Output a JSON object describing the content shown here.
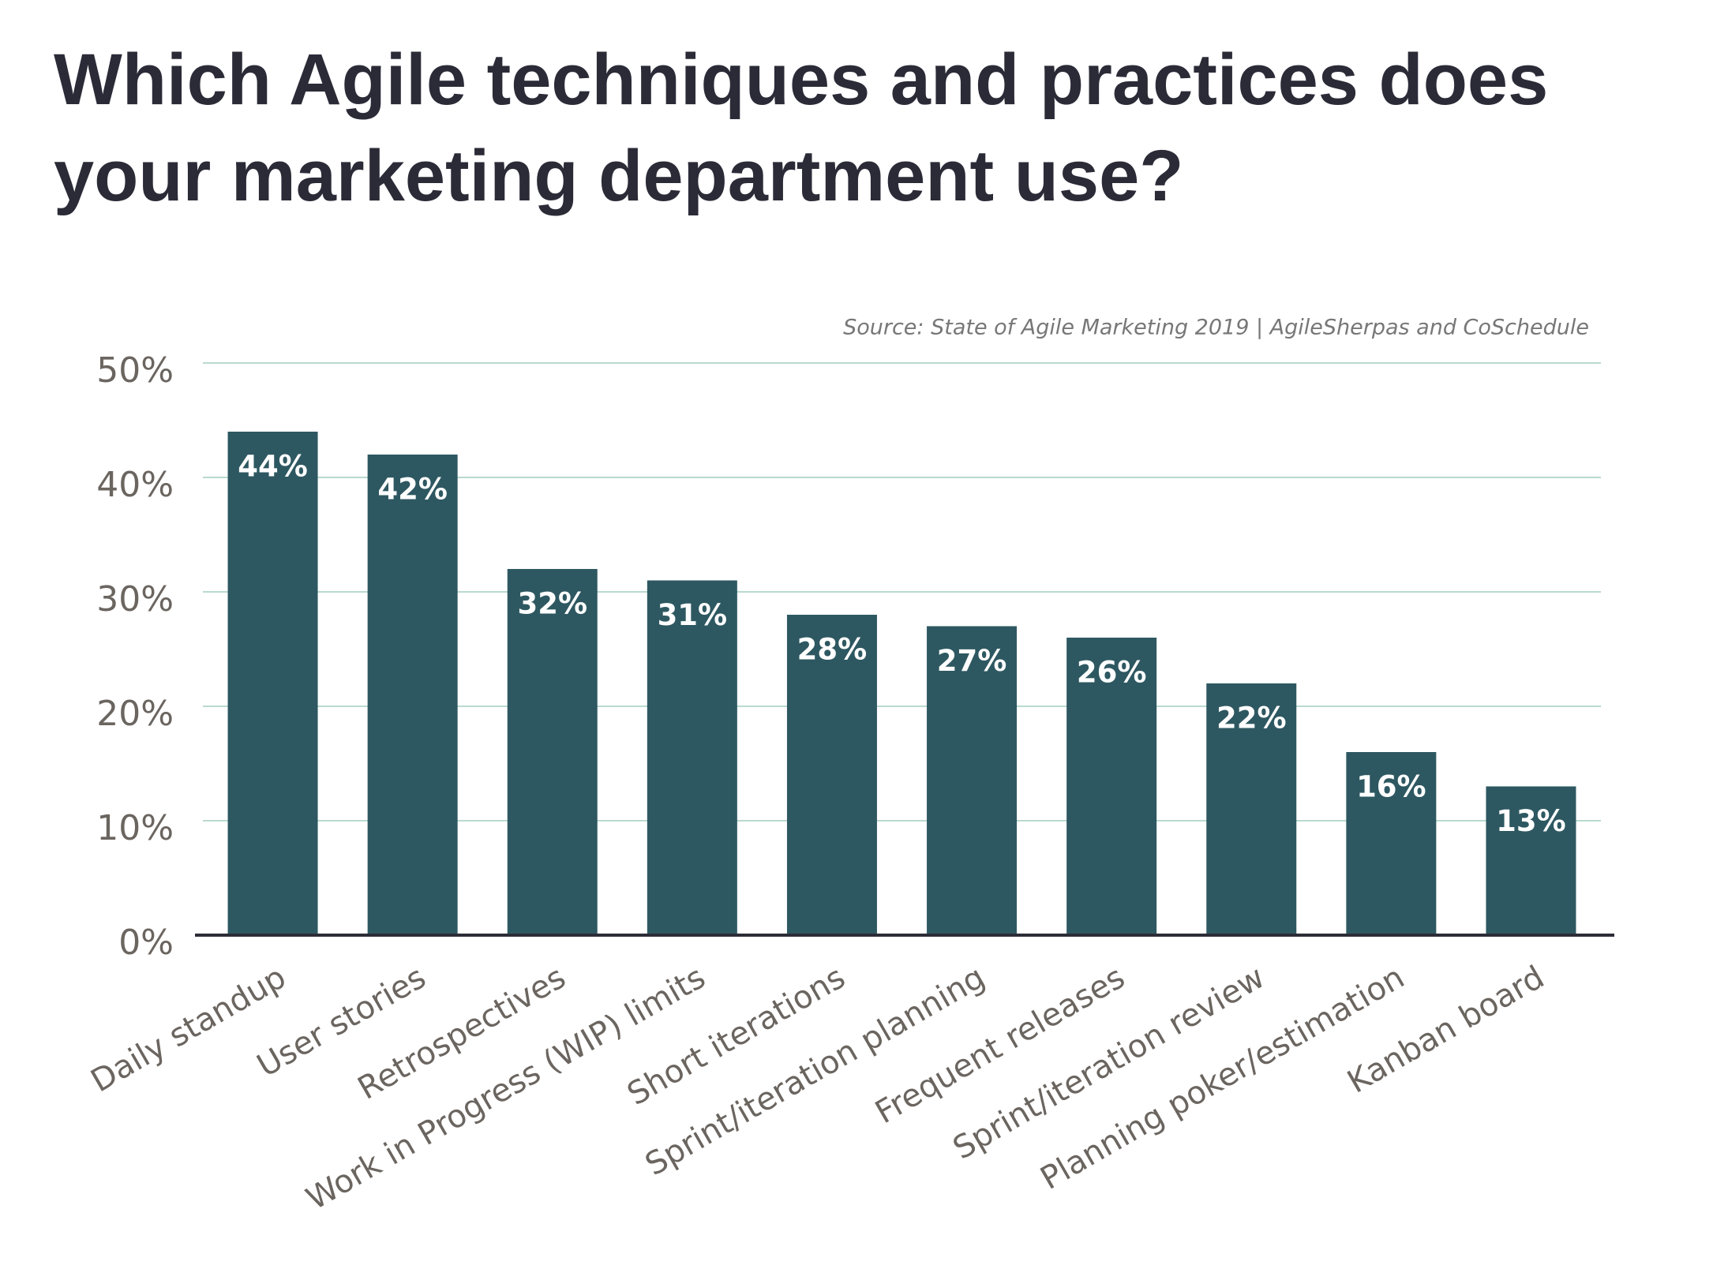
{
  "chart_data": {
    "type": "bar",
    "title": "Which Agile techniques and practices does your marketing department use?",
    "source": "Source: State of Agile Marketing 2019 | AgileSherpas and CoSchedule",
    "categories": [
      "Daily standup",
      "User stories",
      "Retrospectives",
      "Work in Progress (WIP) limits",
      "Short iterations",
      "Sprint/iteration planning",
      "Frequent releases",
      "Sprint/iteration review",
      "Planning poker/estimation",
      "Kanban board"
    ],
    "values": [
      44,
      42,
      32,
      31,
      28,
      27,
      26,
      22,
      16,
      13
    ],
    "value_labels": [
      "44%",
      "42%",
      "32%",
      "31%",
      "28%",
      "27%",
      "26%",
      "22%",
      "16%",
      "13%"
    ],
    "color": "#2e5861",
    "ylim": [
      0,
      50
    ],
    "yticks": [
      {
        "value": 0,
        "label": "0%"
      },
      {
        "value": 10,
        "label": "10%"
      },
      {
        "value": 20,
        "label": "20%"
      },
      {
        "value": 30,
        "label": "30%"
      },
      {
        "value": 40,
        "label": "40%"
      },
      {
        "value": 50,
        "label": "50%"
      }
    ],
    "grid": true
  }
}
